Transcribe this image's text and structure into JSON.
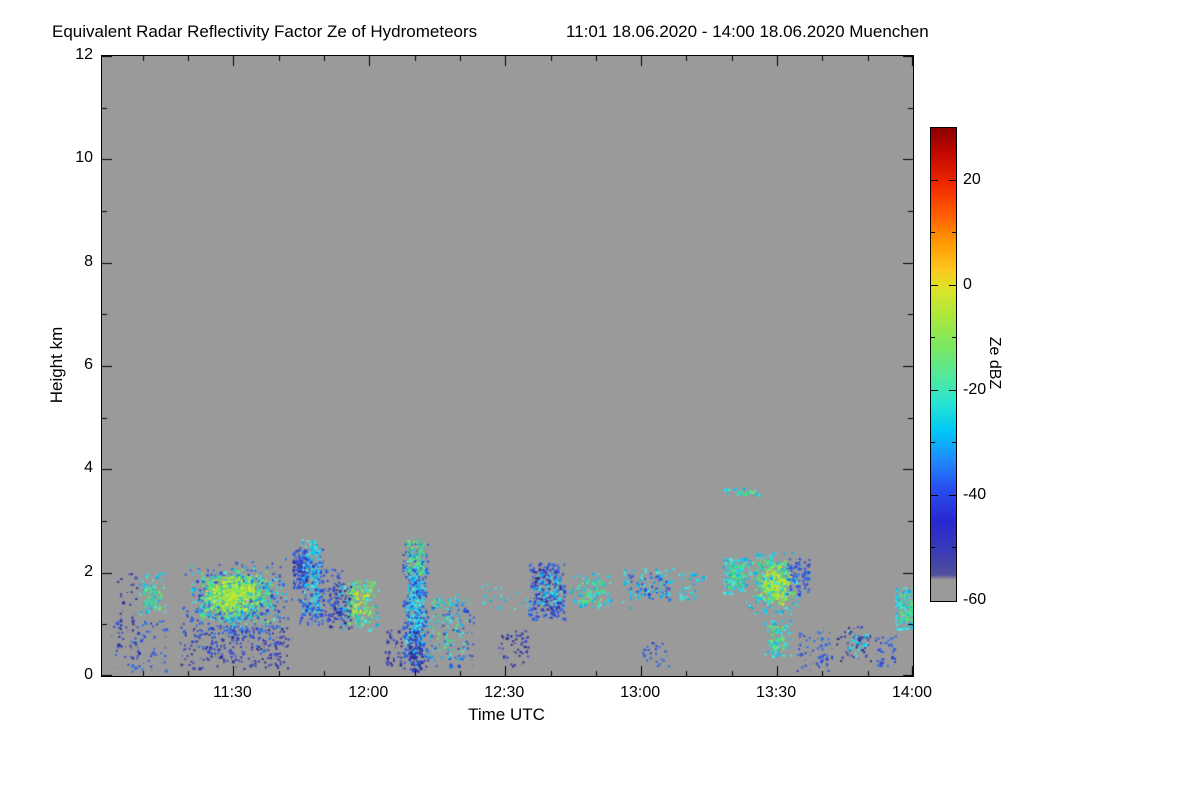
{
  "chart_data": {
    "type": "heatmap",
    "title": "Equivalent Radar Reflectivity Factor Ze of Hydrometeors",
    "subtitle": "11:01 18.06.2020 - 14:00 18.06.2020 Muenchen",
    "xlabel": "Time UTC",
    "ylabel": "Height km",
    "x_minutes_range": [
      1,
      180
    ],
    "x_ticks": [
      {
        "t": 30,
        "label": "11:30"
      },
      {
        "t": 60,
        "label": "12:00"
      },
      {
        "t": 90,
        "label": "12:30"
      },
      {
        "t": 120,
        "label": "13:00"
      },
      {
        "t": 150,
        "label": "13:30"
      },
      {
        "t": 180,
        "label": "14:00"
      }
    ],
    "x_minor_step": 10,
    "ylim": [
      0,
      12
    ],
    "y_ticks": [
      0,
      2,
      4,
      6,
      8,
      10,
      12
    ],
    "y_minor_step": 1,
    "no_echo_color": "#9a9a9a",
    "colorbar": {
      "label": "Ze dBZ",
      "range": [
        -60,
        30
      ],
      "ticks": [
        20,
        0,
        -20,
        -40,
        -60
      ],
      "minor_step": 10,
      "stops": [
        {
          "p": 0.0,
          "c": "#9a9a9a"
        },
        {
          "p": 0.045,
          "c": "#9a9a9a"
        },
        {
          "p": 0.055,
          "c": "#50509c"
        },
        {
          "p": 0.1,
          "c": "#3c3cb4"
        },
        {
          "p": 0.17,
          "c": "#2828d2"
        },
        {
          "p": 0.24,
          "c": "#2850f0"
        },
        {
          "p": 0.3,
          "c": "#1e8cff"
        },
        {
          "p": 0.36,
          "c": "#00c8f5"
        },
        {
          "p": 0.42,
          "c": "#2ae4d2"
        },
        {
          "p": 0.48,
          "c": "#55e896"
        },
        {
          "p": 0.54,
          "c": "#7ce860"
        },
        {
          "p": 0.6,
          "c": "#aae83c"
        },
        {
          "p": 0.66,
          "c": "#dce42a"
        },
        {
          "p": 0.7,
          "c": "#fcc81e"
        },
        {
          "p": 0.76,
          "c": "#ff9600"
        },
        {
          "p": 0.82,
          "c": "#ff5a00"
        },
        {
          "p": 0.88,
          "c": "#f02800"
        },
        {
          "p": 0.94,
          "c": "#c80a00"
        },
        {
          "p": 1.0,
          "c": "#8c0000"
        }
      ]
    },
    "palettes": {
      "darkblue": [
        "#3232a0",
        "#3c46b4",
        "#2d2d96",
        "#4650c0"
      ],
      "blue": [
        "#2846d2",
        "#2d64e6",
        "#1e78f0",
        "#3c50dc"
      ],
      "cyan": [
        "#00b4f0",
        "#14c8f0",
        "#32dce6",
        "#50e6dc"
      ],
      "green": [
        "#46dc8c",
        "#5ae472",
        "#78e85a",
        "#32d89e"
      ],
      "yellow": [
        "#a0e640",
        "#c3e632",
        "#e0e428",
        "#8ce84b"
      ]
    },
    "echo_clusters": [
      {
        "t": [
          3,
          15
        ],
        "h": [
          0.1,
          1.1
        ],
        "n": 80,
        "p": "blue"
      },
      {
        "t": [
          4,
          9
        ],
        "h": [
          0.3,
          2.0
        ],
        "n": 45,
        "p": "darkblue"
      },
      {
        "t": [
          9,
          15
        ],
        "h": [
          1.2,
          2.0
        ],
        "n": 70,
        "p": "cyan"
      },
      {
        "t": [
          10,
          14
        ],
        "h": [
          1.3,
          1.8
        ],
        "n": 45,
        "p": "green"
      },
      {
        "t": [
          17,
          44
        ],
        "h": [
          0.6,
          2.3
        ],
        "n": 400,
        "p": "blue",
        "bias": true
      },
      {
        "t": [
          19,
          42
        ],
        "h": [
          0.9,
          2.2
        ],
        "n": 400,
        "p": "cyan",
        "bias": true
      },
      {
        "t": [
          21,
          39
        ],
        "h": [
          1.0,
          2.1
        ],
        "n": 420,
        "p": "green",
        "bias": true
      },
      {
        "t": [
          23,
          36
        ],
        "h": [
          1.2,
          2.0
        ],
        "n": 330,
        "p": "yellow",
        "bias": true
      },
      {
        "t": [
          18,
          42
        ],
        "h": [
          0.15,
          0.95
        ],
        "n": 190,
        "p": "darkblue"
      },
      {
        "t": [
          20,
          40
        ],
        "h": [
          0.3,
          1.0
        ],
        "n": 80,
        "p": "blue"
      },
      {
        "t": [
          43,
          46
        ],
        "h": [
          1.7,
          2.45
        ],
        "n": 100,
        "p": "blue"
      },
      {
        "t": [
          43,
          46
        ],
        "h": [
          1.8,
          2.3
        ],
        "n": 50,
        "p": "darkblue"
      },
      {
        "t": [
          45,
          49
        ],
        "h": [
          1.2,
          2.65
        ],
        "n": 180,
        "p": "cyan"
      },
      {
        "t": [
          44,
          50
        ],
        "h": [
          1.0,
          2.5
        ],
        "n": 140,
        "p": "blue"
      },
      {
        "t": [
          49,
          54
        ],
        "h": [
          1.1,
          2.1
        ],
        "n": 80,
        "p": "blue"
      },
      {
        "t": [
          51,
          56
        ],
        "h": [
          0.9,
          1.8
        ],
        "n": 90,
        "p": "darkblue"
      },
      {
        "t": [
          55,
          61
        ],
        "h": [
          1.0,
          1.85
        ],
        "n": 130,
        "p": "green"
      },
      {
        "t": [
          56,
          60
        ],
        "h": [
          1.2,
          1.7
        ],
        "n": 55,
        "p": "yellow"
      },
      {
        "t": [
          53,
          62
        ],
        "h": [
          0.9,
          1.9
        ],
        "n": 60,
        "p": "cyan"
      },
      {
        "t": [
          63,
          67
        ],
        "h": [
          0.2,
          0.9
        ],
        "n": 45,
        "p": "darkblue"
      },
      {
        "t": [
          67.5,
          72.5
        ],
        "h": [
          0.1,
          2.7
        ],
        "n": 430,
        "p": "cyan",
        "bias": true
      },
      {
        "t": [
          67.2,
          72.8
        ],
        "h": [
          0.1,
          2.6
        ],
        "n": 250,
        "p": "blue"
      },
      {
        "t": [
          68,
          72
        ],
        "h": [
          2.0,
          2.65
        ],
        "n": 80,
        "p": "green"
      },
      {
        "t": [
          68.5,
          71.5
        ],
        "h": [
          0.1,
          0.9
        ],
        "n": 90,
        "p": "darkblue"
      },
      {
        "t": [
          73,
          81
        ],
        "h": [
          0.3,
          1.6
        ],
        "n": 100,
        "p": "cyan"
      },
      {
        "t": [
          74,
          82
        ],
        "h": [
          0.5,
          1.5
        ],
        "n": 50,
        "p": "green"
      },
      {
        "t": [
          73,
          83
        ],
        "h": [
          0.2,
          1.4
        ],
        "n": 70,
        "p": "blue"
      },
      {
        "t": [
          84,
          118
        ],
        "h": [
          1.3,
          1.8
        ],
        "n": 55,
        "p": "cyan"
      },
      {
        "t": [
          88,
          95
        ],
        "h": [
          0.2,
          0.9
        ],
        "n": 55,
        "p": "darkblue"
      },
      {
        "t": [
          95,
          103
        ],
        "h": [
          1.1,
          2.2
        ],
        "n": 190,
        "p": "blue"
      },
      {
        "t": [
          96,
          102
        ],
        "h": [
          1.3,
          2.1
        ],
        "n": 100,
        "p": "darkblue"
      },
      {
        "t": [
          97,
          102
        ],
        "h": [
          1.4,
          2.0
        ],
        "n": 55,
        "p": "cyan"
      },
      {
        "t": [
          104,
          113
        ],
        "h": [
          1.3,
          2.0
        ],
        "n": 85,
        "p": "cyan"
      },
      {
        "t": [
          106,
          112
        ],
        "h": [
          1.4,
          1.9
        ],
        "n": 45,
        "p": "green"
      },
      {
        "t": [
          116,
          127
        ],
        "h": [
          1.5,
          2.1
        ],
        "n": 85,
        "p": "cyan"
      },
      {
        "t": [
          117,
          126
        ],
        "h": [
          1.5,
          2.0
        ],
        "n": 45,
        "p": "blue"
      },
      {
        "t": [
          120,
          126
        ],
        "h": [
          0.2,
          0.7
        ],
        "n": 30,
        "p": "blue"
      },
      {
        "t": [
          128,
          134
        ],
        "h": [
          1.5,
          2.0
        ],
        "n": 45,
        "p": "cyan"
      },
      {
        "t": [
          138,
          143
        ],
        "h": [
          1.6,
          2.3
        ],
        "n": 140,
        "p": "cyan"
      },
      {
        "t": [
          139,
          142.5
        ],
        "h": [
          1.7,
          2.2
        ],
        "n": 70,
        "p": "green"
      },
      {
        "t": [
          138,
          146
        ],
        "h": [
          3.5,
          3.65
        ],
        "n": 28,
        "p": "cyan"
      },
      {
        "t": [
          140,
          145
        ],
        "h": [
          3.52,
          3.62
        ],
        "n": 12,
        "p": "green"
      },
      {
        "t": [
          144,
          154
        ],
        "h": [
          1.3,
          2.35
        ],
        "n": 260,
        "p": "green",
        "bias": true
      },
      {
        "t": [
          146,
          153
        ],
        "h": [
          1.4,
          2.2
        ],
        "n": 170,
        "p": "yellow",
        "bias": true
      },
      {
        "t": [
          143,
          155
        ],
        "h": [
          1.2,
          2.4
        ],
        "n": 150,
        "p": "cyan"
      },
      {
        "t": [
          152,
          157
        ],
        "h": [
          1.6,
          2.3
        ],
        "n": 90,
        "p": "blue"
      },
      {
        "t": [
          147,
          153
        ],
        "h": [
          0.4,
          1.1
        ],
        "n": 85,
        "p": "cyan"
      },
      {
        "t": [
          148,
          152
        ],
        "h": [
          0.5,
          1.0
        ],
        "n": 45,
        "p": "green"
      },
      {
        "t": [
          154,
          162
        ],
        "h": [
          0.1,
          0.9
        ],
        "n": 65,
        "p": "blue"
      },
      {
        "t": [
          163,
          171
        ],
        "h": [
          0.3,
          1.0
        ],
        "n": 50,
        "p": "darkblue"
      },
      {
        "t": [
          165,
          170
        ],
        "h": [
          0.4,
          0.9
        ],
        "n": 28,
        "p": "cyan"
      },
      {
        "t": [
          171,
          176
        ],
        "h": [
          0.2,
          0.8
        ],
        "n": 38,
        "p": "blue"
      },
      {
        "t": [
          176,
          180
        ],
        "h": [
          0.9,
          1.75
        ],
        "n": 120,
        "p": "cyan"
      },
      {
        "t": [
          177,
          180
        ],
        "h": [
          1.0,
          1.6
        ],
        "n": 45,
        "p": "green"
      }
    ]
  }
}
